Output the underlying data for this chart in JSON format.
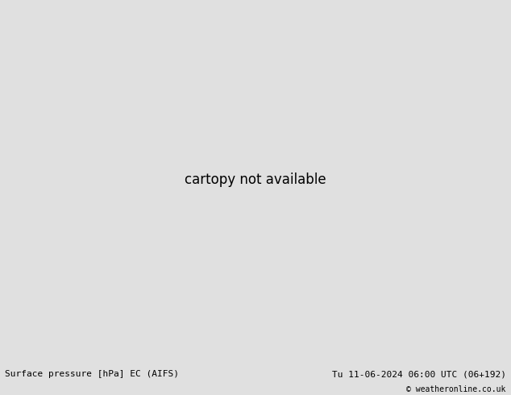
{
  "title_left": "Surface pressure [hPa] EC (AIFS)",
  "title_right": "Tu 11-06-2024 06:00 UTC (06+192)",
  "copyright": "© weatheronline.co.uk",
  "bg_color": "#e0e0e0",
  "ocean_color": "#d8e8f0",
  "land_color": "#b8dba0",
  "gray_land_color": "#b0b0b0",
  "border_color": "#555555",
  "bottom_bar_color": "#d8d8d8",
  "fig_width": 6.34,
  "fig_height": 4.9,
  "dpi": 100,
  "font_size_labels": 8,
  "font_size_copyright": 7,
  "blue": "#0000cc",
  "red": "#cc0000",
  "black": "#000000"
}
